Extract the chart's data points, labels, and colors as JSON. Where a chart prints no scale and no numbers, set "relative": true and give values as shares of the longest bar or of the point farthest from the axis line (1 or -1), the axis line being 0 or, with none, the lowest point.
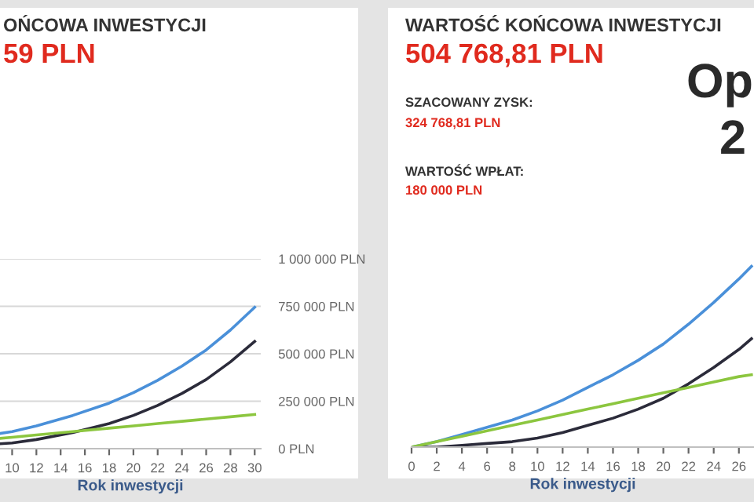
{
  "chart_data": [
    {
      "type": "line",
      "title": "OŃCOWA INWESTYCJI",
      "subtitle": "59 PLN",
      "xlabel": "Rok inwestycji",
      "x": [
        9,
        10,
        12,
        15,
        18,
        20,
        22,
        24,
        26,
        28,
        30
      ],
      "series": [
        {
          "color": "#4a90d9",
          "values": [
            80000,
            90000,
            120000,
            175000,
            240000,
            295000,
            360000,
            435000,
            520000,
            625000,
            745000
          ]
        },
        {
          "color": "#2b2b3a",
          "values": [
            26000,
            30000,
            48000,
            85000,
            132000,
            175000,
            228000,
            291000,
            364000,
            457000,
            565000
          ]
        },
        {
          "color": "#8cc63f",
          "values": [
            54000,
            60000,
            72000,
            90000,
            108000,
            120000,
            132000,
            144000,
            156000,
            168000,
            180000
          ]
        }
      ],
      "xlim": [
        9,
        30.5
      ],
      "xticks": [
        10,
        12,
        14,
        16,
        18,
        20,
        22,
        24,
        26,
        28,
        30
      ],
      "ylim": [
        0,
        1000000
      ],
      "yticks": [
        {
          "value": 0,
          "label": "0 PLN"
        },
        {
          "value": 250000,
          "label": "250 000 PLN"
        },
        {
          "value": 500000,
          "label": "500 000 PLN"
        },
        {
          "value": 750000,
          "label": "750 000 PLN"
        },
        {
          "value": 1000000,
          "label": "1 000 000 PLN"
        }
      ],
      "grid": "y"
    },
    {
      "type": "line",
      "title": "WARTOŚĆ KOŃCOWA INWESTYCJI",
      "subtitle": "504 768,81 PLN",
      "xlabel": "Rok inwestycji",
      "annotations": [
        "SZACOWANY ZYSK:",
        "324 768,81 PLN",
        "WARTOŚĆ WPŁAT:",
        "180 000 PLN",
        "Op",
        "2"
      ],
      "x": [
        0,
        2,
        4,
        6,
        8,
        10,
        12,
        14,
        16,
        18,
        20,
        22,
        24,
        26,
        27
      ],
      "relative": true,
      "series": [
        {
          "color": "#4a90d9",
          "values": [
            0,
            0.03,
            0.07,
            0.11,
            0.15,
            0.2,
            0.26,
            0.33,
            0.4,
            0.48,
            0.57,
            0.68,
            0.8,
            0.93,
            1
          ]
        },
        {
          "color": "#2b2b3a",
          "values": [
            0,
            0,
            0.01,
            0.02,
            0.03,
            0.05,
            0.08,
            0.12,
            0.16,
            0.21,
            0.27,
            0.35,
            0.44,
            0.54,
            0.6
          ]
        },
        {
          "color": "#8cc63f",
          "values": [
            0,
            0.03,
            0.06,
            0.09,
            0.12,
            0.15,
            0.18,
            0.21,
            0.24,
            0.27,
            0.3,
            0.33,
            0.36,
            0.39,
            0.4
          ]
        }
      ],
      "xlim": [
        0,
        27.2
      ],
      "xticks": [
        0,
        2,
        4,
        6,
        8,
        10,
        12,
        14,
        16,
        18,
        20,
        22,
        24,
        26
      ],
      "tick_labels": "x"
    }
  ]
}
